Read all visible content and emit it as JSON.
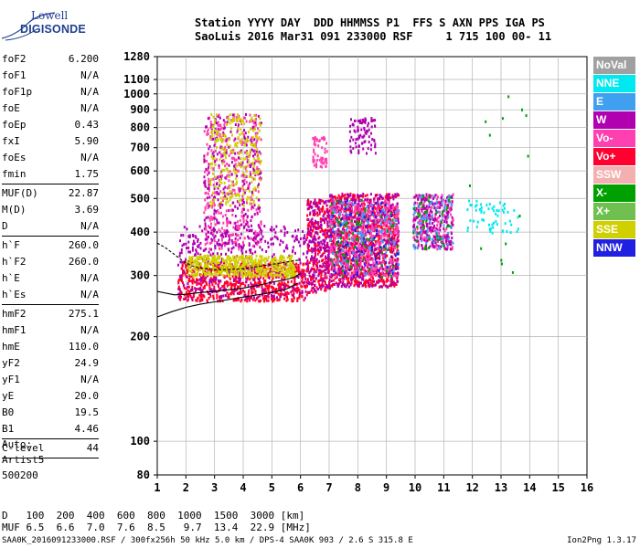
{
  "logo": {
    "line1": "Lowell",
    "line2": "DIGISONDE"
  },
  "header": {
    "line1": "Station YYYY DAY  DDD HHMMSS P1  FFS S AXN PPS IGA PS",
    "line2": "SaoLuis 2016 Mar31 091 233000 RSF     1 715 100 00- 11"
  },
  "params": [
    {
      "name": "foF2",
      "value": "6.200"
    },
    {
      "name": "foF1",
      "value": "N/A"
    },
    {
      "name": "foF1p",
      "value": "N/A"
    },
    {
      "name": "foE",
      "value": "N/A"
    },
    {
      "name": "foEp",
      "value": "0.43"
    },
    {
      "name": "fxI",
      "value": "5.90"
    },
    {
      "name": "foEs",
      "value": "N/A"
    },
    {
      "name": "fmin",
      "value": "1.75"
    },
    {
      "sep": true
    },
    {
      "name": "MUF(D)",
      "value": "22.87"
    },
    {
      "name": "M(D)",
      "value": "3.69"
    },
    {
      "name": "D",
      "value": "N/A"
    },
    {
      "sep": true
    },
    {
      "name": "h`F",
      "value": "260.0"
    },
    {
      "name": "h`F2",
      "value": "260.0"
    },
    {
      "name": "h`E",
      "value": "N/A"
    },
    {
      "name": "h`Es",
      "value": "N/A"
    },
    {
      "sep": true
    },
    {
      "name": "hmF2",
      "value": "275.1"
    },
    {
      "name": "hmF1",
      "value": "N/A"
    },
    {
      "name": "hmE",
      "value": "110.0"
    },
    {
      "name": "yF2",
      "value": "24.9"
    },
    {
      "name": "yF1",
      "value": "N/A"
    },
    {
      "name": "yE",
      "value": "20.0"
    },
    {
      "name": "B0",
      "value": "19.5"
    },
    {
      "name": "B1",
      "value": "4.46"
    },
    {
      "sep": true
    },
    {
      "name": "C-level",
      "value": "44"
    },
    {
      "sep": true
    }
  ],
  "auto": {
    "line1": "Auto:",
    "line2": "Artist5",
    "line3": "500200"
  },
  "legend": [
    {
      "label": "NoVal",
      "color": "#a0a0a0"
    },
    {
      "label": "NNE",
      "color": "#00e8f0"
    },
    {
      "label": "E",
      "color": "#40a0f0"
    },
    {
      "label": "W",
      "color": "#b000b0"
    },
    {
      "label": "Vo-",
      "color": "#ff40b0"
    },
    {
      "label": "Vo+",
      "color": "#ff0030"
    },
    {
      "label": "SSW",
      "color": "#f4b0b0"
    },
    {
      "label": "X-",
      "color": "#00a000"
    },
    {
      "label": "X+",
      "color": "#70c050"
    },
    {
      "label": "SSE",
      "color": "#d0d000"
    },
    {
      "label": "NNW",
      "color": "#2020e0"
    }
  ],
  "muf_table": {
    "d_label": "D",
    "d_values": [
      "100",
      "200",
      "400",
      "600",
      "800",
      "1000",
      "1500",
      "3000"
    ],
    "d_unit": "[km]",
    "muf_label": "MUF",
    "muf_values": [
      "6.5",
      "6.6",
      "7.0",
      "7.6",
      "8.5",
      "9.7",
      "13.4",
      "22.9"
    ],
    "muf_unit": "[MHz]"
  },
  "footer": {
    "left": "SAA0K_2016091233000.RSF / 300fx256h 50 kHz 5.0 km / DPS-4 SAA0K 903 / 2.6 S 315.8 E",
    "right": "Ion2Png 1.3.17"
  },
  "chart_data": {
    "type": "scatter",
    "xlim": [
      1,
      16
    ],
    "ylim": [
      80,
      1280
    ],
    "yscale": "log",
    "x_ticks": [
      "1",
      "2",
      "3",
      "4",
      "5",
      "6",
      "7",
      "8",
      "9",
      "10",
      "11",
      "12",
      "13",
      "14",
      "15",
      "16"
    ],
    "y_ticks": [
      80,
      100,
      200,
      300,
      400,
      500,
      600,
      700,
      800,
      900,
      1000,
      1100,
      1280
    ],
    "grid": true,
    "trace_line": [
      [
        1.0,
        228
      ],
      [
        1.5,
        236
      ],
      [
        2.0,
        243
      ],
      [
        2.5,
        248
      ],
      [
        3.0,
        252
      ],
      [
        3.5,
        256
      ],
      [
        4.0,
        260
      ],
      [
        4.5,
        264
      ],
      [
        5.0,
        268
      ],
      [
        5.5,
        274
      ],
      [
        5.9,
        285
      ]
    ],
    "trace_line2": [
      [
        1.0,
        270
      ],
      [
        1.6,
        264
      ],
      [
        2.0,
        265
      ],
      [
        2.5,
        268
      ],
      [
        3.0,
        270
      ],
      [
        3.5,
        273
      ],
      [
        4.0,
        276
      ],
      [
        4.5,
        281
      ],
      [
        5.0,
        287
      ],
      [
        5.5,
        292
      ],
      [
        5.8,
        297
      ],
      [
        6.0,
        304
      ]
    ],
    "trace_line3": [
      [
        1.0,
        372
      ],
      [
        1.3,
        360
      ],
      [
        1.6,
        345
      ],
      [
        1.9,
        330
      ],
      [
        2.2,
        320
      ],
      [
        2.5,
        315
      ],
      [
        3.0,
        312
      ],
      [
        3.5,
        312
      ],
      [
        4.0,
        314
      ],
      [
        4.5,
        318
      ],
      [
        5.0,
        323
      ],
      [
        5.5,
        328
      ],
      [
        6.0,
        333
      ]
    ],
    "clusters": [
      {
        "x": [
          1.7,
          6.2
        ],
        "y": [
          255,
          330
        ],
        "color": "#ff0030",
        "n": 700
      },
      {
        "x": [
          1.7,
          6.2
        ],
        "y": [
          260,
          420
        ],
        "color": "#b000b0",
        "n": 420
      },
      {
        "x": [
          2.0,
          5.8
        ],
        "y": [
          300,
          345
        ],
        "color": "#d0d000",
        "n": 500
      },
      {
        "x": [
          2.6,
          4.6
        ],
        "y": [
          360,
          880
        ],
        "color": "#ff40b0",
        "n": 380
      },
      {
        "x": [
          2.6,
          4.6
        ],
        "y": [
          360,
          880
        ],
        "color": "#b000b0",
        "n": 260
      },
      {
        "x": [
          2.8,
          4.6
        ],
        "y": [
          480,
          880
        ],
        "color": "#d0d000",
        "n": 240
      },
      {
        "x": [
          6.2,
          7.0
        ],
        "y": [
          270,
          500
        ],
        "color": "#ff0030",
        "n": 260
      },
      {
        "x": [
          6.2,
          7.0
        ],
        "y": [
          270,
          500
        ],
        "color": "#b000b0",
        "n": 200
      },
      {
        "x": [
          6.4,
          6.9
        ],
        "y": [
          620,
          760
        ],
        "color": "#ff40b0",
        "n": 60
      },
      {
        "x": [
          7.0,
          9.4
        ],
        "y": [
          280,
          520
        ],
        "color": "#ff0030",
        "n": 900
      },
      {
        "x": [
          7.0,
          9.4
        ],
        "y": [
          280,
          520
        ],
        "color": "#b000b0",
        "n": 500
      },
      {
        "x": [
          7.0,
          9.4
        ],
        "y": [
          300,
          500
        ],
        "color": "#ff40b0",
        "n": 400
      },
      {
        "x": [
          7.0,
          9.4
        ],
        "y": [
          300,
          500
        ],
        "color": "#40a0f0",
        "n": 120
      },
      {
        "x": [
          7.0,
          9.4
        ],
        "y": [
          300,
          500
        ],
        "color": "#00a000",
        "n": 80
      },
      {
        "x": [
          7.0,
          9.4
        ],
        "y": [
          300,
          500
        ],
        "color": "#2020e0",
        "n": 80
      },
      {
        "x": [
          7.7,
          8.6
        ],
        "y": [
          680,
          860
        ],
        "color": "#b000b0",
        "n": 90
      },
      {
        "x": [
          9.9,
          11.3
        ],
        "y": [
          360,
          520
        ],
        "color": "#ff40b0",
        "n": 220
      },
      {
        "x": [
          9.9,
          11.3
        ],
        "y": [
          360,
          520
        ],
        "color": "#b000b0",
        "n": 180
      },
      {
        "x": [
          9.9,
          11.3
        ],
        "y": [
          360,
          520
        ],
        "color": "#40a0f0",
        "n": 80
      },
      {
        "x": [
          9.9,
          11.3
        ],
        "y": [
          360,
          520
        ],
        "color": "#00a000",
        "n": 40
      },
      {
        "x": [
          11.8,
          13.6
        ],
        "y": [
          400,
          500
        ],
        "color": "#00e8f0",
        "n": 60
      },
      {
        "x": [
          11.5,
          14.2
        ],
        "y": [
          300,
          1050
        ],
        "color": "#00a000",
        "n": 14
      }
    ]
  }
}
